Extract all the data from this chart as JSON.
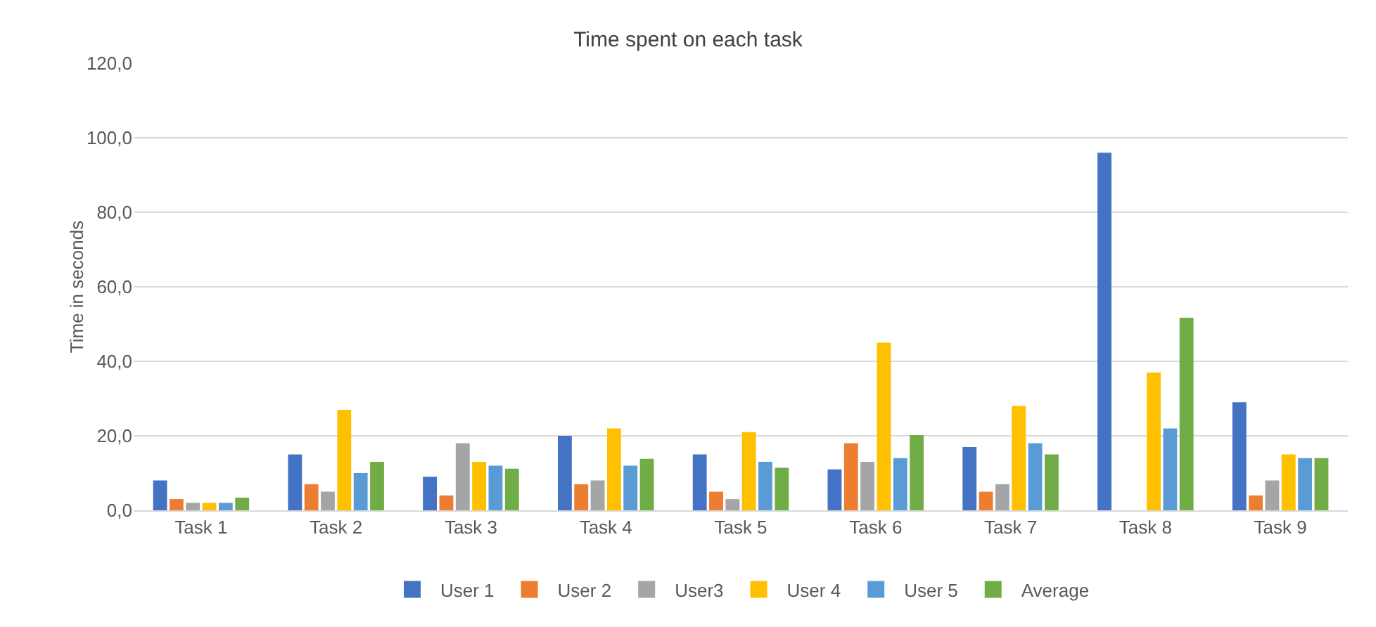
{
  "chart_data": {
    "type": "bar",
    "title": "Time spent on each task",
    "ylabel": "Time in seconds",
    "categories": [
      "Task 1",
      "Task 2",
      "Task 3",
      "Task 4",
      "Task 5",
      "Task 6",
      "Task 7",
      "Task 8",
      "Task 9"
    ],
    "series": [
      {
        "name": "User 1",
        "color": "#4472c4",
        "values": [
          8,
          15,
          9,
          20,
          15,
          11,
          17,
          96,
          29
        ]
      },
      {
        "name": "User 2",
        "color": "#ed7d31",
        "values": [
          3,
          7,
          4,
          7,
          5,
          18,
          5,
          null,
          4
        ]
      },
      {
        "name": "User3",
        "color": "#a5a5a5",
        "values": [
          2,
          5,
          18,
          8,
          3,
          13,
          7,
          null,
          8
        ]
      },
      {
        "name": "User 4",
        "color": "#ffc000",
        "values": [
          2,
          27,
          13,
          22,
          21,
          45,
          28,
          37,
          15
        ]
      },
      {
        "name": "User 5",
        "color": "#5b9bd5",
        "values": [
          2,
          10,
          12,
          12,
          13,
          14,
          18,
          22,
          14
        ]
      },
      {
        "name": "Average",
        "color": "#70ad47",
        "values": [
          3.4,
          13,
          11.2,
          13.8,
          11.4,
          20.2,
          15,
          51.7,
          14
        ]
      }
    ],
    "ylim": [
      0,
      120
    ],
    "yticks": [
      {
        "value": 0,
        "label": "0,0"
      },
      {
        "value": 20,
        "label": "20,0"
      },
      {
        "value": 40,
        "label": "40,0"
      },
      {
        "value": 60,
        "label": "60,0"
      },
      {
        "value": 80,
        "label": "80,0"
      },
      {
        "value": 100,
        "label": "100,0"
      },
      {
        "value": 120,
        "label": "120,0"
      }
    ],
    "grid": "y",
    "legend": "bottom"
  }
}
